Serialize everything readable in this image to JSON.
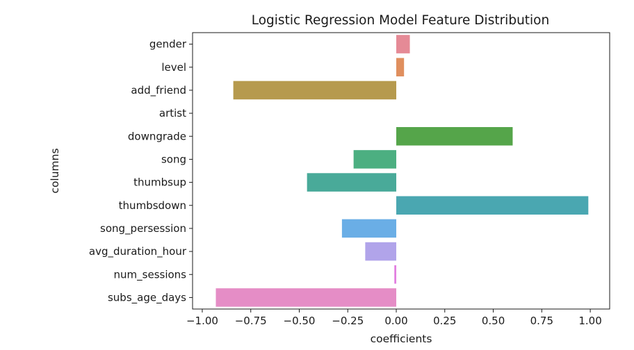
{
  "chart_data": {
    "type": "bar",
    "orientation": "horizontal",
    "title": "Logistic Regression Model Feature Distribution",
    "xlabel": "coefficients",
    "ylabel": "columns",
    "categories": [
      "gender",
      "level",
      "add_friend",
      "artist",
      "downgrade",
      "song",
      "thumbsup",
      "thumbsdown",
      "song_persession",
      "avg_duration_hour",
      "num_sessions",
      "subs_age_days"
    ],
    "values": [
      0.07,
      0.04,
      -0.84,
      0.0,
      0.6,
      -0.22,
      -0.46,
      0.99,
      -0.28,
      -0.16,
      -0.01,
      -0.93
    ],
    "colors": [
      "#e58a96",
      "#e08f5e",
      "#b69a4e",
      "#9ea33f",
      "#55a54a",
      "#4caf81",
      "#49aa99",
      "#4aa7b1",
      "#6aaee6",
      "#b1a4ea",
      "#e27fe0",
      "#e58dc6"
    ],
    "xlim": [
      -1.05,
      1.1
    ],
    "xticks": [
      -1.0,
      -0.75,
      -0.5,
      -0.25,
      0.0,
      0.25,
      0.5,
      0.75,
      1.0
    ],
    "xtick_labels": [
      "−1.00",
      "−0.75",
      "−0.50",
      "−0.25",
      "0.00",
      "0.25",
      "0.50",
      "0.75",
      "1.00"
    ],
    "grid": false,
    "legend": "none"
  }
}
